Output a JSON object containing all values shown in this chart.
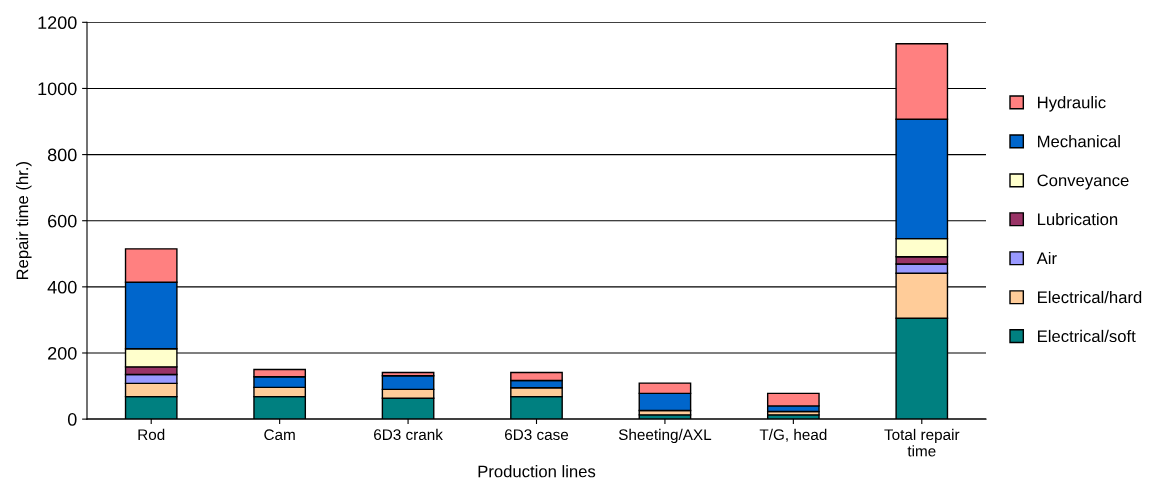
{
  "chart_data": {
    "type": "bar",
    "stacked": true,
    "xlabel": "Production lines",
    "ylabel": "Repair time (hr.)",
    "categories": [
      "Rod",
      "Cam",
      "6D3 crank",
      "6D3 case",
      "Sheeting/AXL",
      "T/G, head",
      "Total repair\ntime"
    ],
    "series": [
      {
        "name": "Electrical/soft",
        "color": "#008080",
        "values": [
          68,
          68,
          63,
          68,
          13,
          13,
          305
        ]
      },
      {
        "name": "Electrical/hard",
        "color": "#ffcc99",
        "values": [
          40,
          28,
          27,
          27,
          13,
          10,
          136
        ]
      },
      {
        "name": "Air",
        "color": "#9999ff",
        "values": [
          27,
          null,
          null,
          null,
          null,
          null,
          28
        ]
      },
      {
        "name": "Lubrication",
        "color": "#993366",
        "values": [
          23,
          null,
          null,
          null,
          null,
          null,
          22
        ]
      },
      {
        "name": "Conveyance",
        "color": "#ffffcc",
        "values": [
          55,
          null,
          null,
          null,
          null,
          null,
          55
        ]
      },
      {
        "name": "Mechanical",
        "color": "#0066cc",
        "values": [
          201,
          32,
          41,
          22,
          52,
          17,
          361
        ]
      },
      {
        "name": "Hydraulic",
        "color": "#ff8080",
        "values": [
          101,
          22,
          10,
          24,
          31,
          38,
          228
        ]
      }
    ],
    "ylim": [
      0,
      1200
    ],
    "yticks": [
      0,
      200,
      400,
      600,
      800,
      1000,
      1200
    ],
    "grid": "y",
    "legend": "right"
  }
}
